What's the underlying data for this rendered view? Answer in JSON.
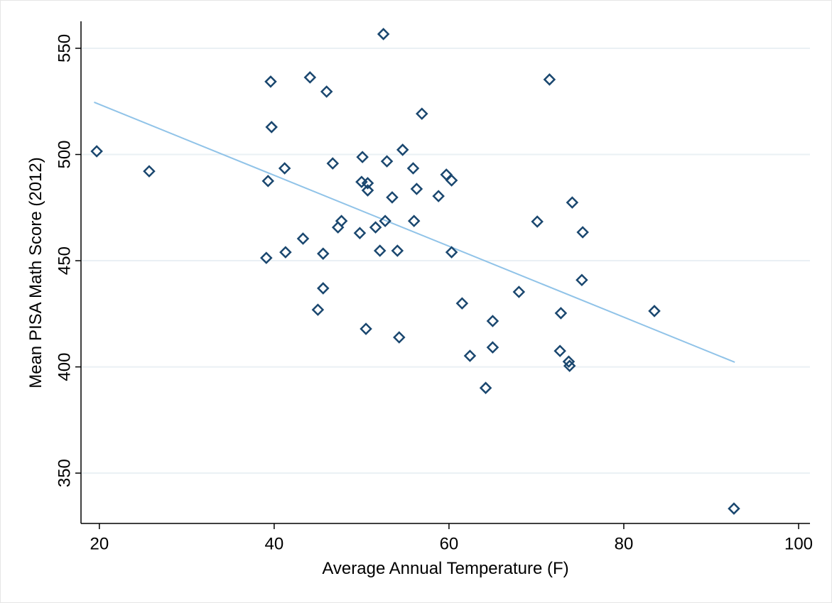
{
  "chart_data": {
    "type": "scatter",
    "x_label": "Average Annual Temperature (F)",
    "y_label": "Mean PISA Math Score (2012)",
    "xlim": [
      17.9,
      101.3
    ],
    "ylim": [
      326.3,
      562.7
    ],
    "xticks": [
      20,
      40,
      60,
      80,
      100
    ],
    "yticks": [
      350,
      400,
      450,
      500,
      550
    ],
    "grid": true,
    "series": [
      {
        "type": "scatter",
        "color": "#1a476f",
        "x": [
          19.7,
          25.7,
          39.3,
          39.1,
          39.6,
          39.7,
          41.2,
          41.3,
          43.3,
          44.1,
          46.0,
          45.6,
          45.6,
          45.0,
          46.7,
          47.7,
          47.3,
          49.8,
          50.1,
          50.0,
          50.7,
          50.7,
          50.5,
          52.5,
          52.9,
          53.5,
          52.7,
          51.6,
          52.1,
          54.1,
          54.3,
          54.7,
          56.9,
          55.9,
          56.3,
          56.0,
          58.8,
          59.7,
          60.3,
          60.3,
          61.5,
          62.4,
          64.2,
          65.0,
          65.0,
          68.0,
          70.1,
          71.5,
          74.1,
          75.3,
          75.2,
          72.8,
          72.7,
          73.7,
          73.8,
          83.5,
          92.6
        ],
        "values": [
          501.5,
          492.1,
          487.5,
          451.3,
          534.3,
          512.9,
          493.5,
          454.0,
          460.4,
          536.3,
          529.6,
          453.3,
          437.0,
          426.9,
          495.8,
          468.7,
          465.7,
          463.0,
          498.8,
          487.1,
          486.5,
          483.1,
          417.9,
          556.7,
          496.8,
          479.8,
          468.7,
          465.7,
          454.7,
          454.7,
          413.9,
          502.2,
          519.2,
          493.5,
          483.8,
          468.7,
          480.4,
          490.5,
          487.8,
          454.0,
          429.9,
          405.2,
          390.1,
          421.6,
          409.2,
          435.3,
          468.4,
          535.3,
          477.4,
          463.4,
          440.9,
          425.3,
          407.5,
          402.5,
          400.5,
          426.3,
          333.3
        ]
      },
      {
        "type": "line",
        "color": "#90c3e8",
        "x": [
          19.4,
          92.7
        ],
        "values": [
          524.6,
          402.2
        ]
      }
    ]
  }
}
